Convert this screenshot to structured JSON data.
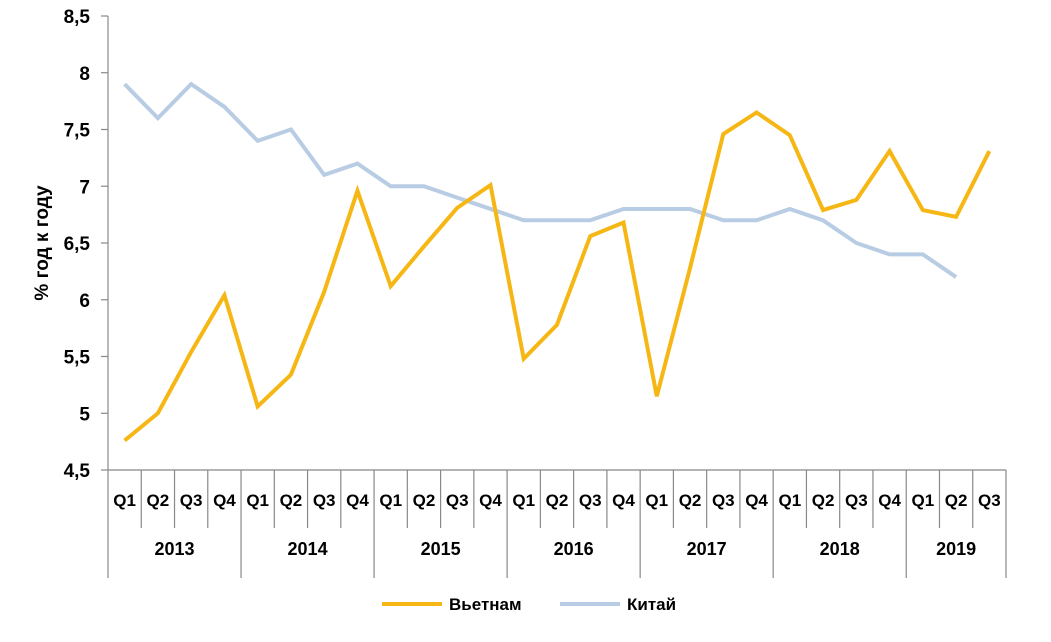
{
  "chart_data": {
    "type": "line",
    "ylabel": "% год к году",
    "xlabel": "",
    "ylim": [
      4.5,
      8.5
    ],
    "yticks": [
      "4,5",
      "5",
      "5,5",
      "6",
      "6,5",
      "7",
      "7,5",
      "8",
      "8,5"
    ],
    "ytick_values": [
      4.5,
      5,
      5.5,
      6,
      6.5,
      7,
      7.5,
      8,
      8.5
    ],
    "grid": false,
    "legend": "bottom",
    "categories": [
      "Q1",
      "Q2",
      "Q3",
      "Q4",
      "Q1",
      "Q2",
      "Q3",
      "Q4",
      "Q1",
      "Q2",
      "Q3",
      "Q4",
      "Q1",
      "Q2",
      "Q3",
      "Q4",
      "Q1",
      "Q2",
      "Q3",
      "Q4",
      "Q1",
      "Q2",
      "Q3",
      "Q4",
      "Q1",
      "Q2",
      "Q3"
    ],
    "groups": [
      {
        "label": "2013",
        "count": 4
      },
      {
        "label": "2014",
        "count": 4
      },
      {
        "label": "2015",
        "count": 4
      },
      {
        "label": "2016",
        "count": 4
      },
      {
        "label": "2017",
        "count": 4
      },
      {
        "label": "2018",
        "count": 4
      },
      {
        "label": "2019",
        "count": 3
      }
    ],
    "series": [
      {
        "name": "Вьетнам",
        "color": "#F6B715",
        "values": [
          4.76,
          5.0,
          5.54,
          6.04,
          5.06,
          5.34,
          6.07,
          6.96,
          6.12,
          6.47,
          6.81,
          7.01,
          5.48,
          5.78,
          6.56,
          6.68,
          5.15,
          6.28,
          7.46,
          7.65,
          7.45,
          6.79,
          6.88,
          7.31,
          6.79,
          6.73,
          7.31
        ]
      },
      {
        "name": "Китай",
        "color": "#B8CCE4",
        "values": [
          7.9,
          7.6,
          7.9,
          7.7,
          7.4,
          7.5,
          7.1,
          7.2,
          7.0,
          7.0,
          6.9,
          6.8,
          6.7,
          6.7,
          6.7,
          6.8,
          6.8,
          6.8,
          6.7,
          6.7,
          6.8,
          6.7,
          6.5,
          6.4,
          6.4,
          6.2,
          null
        ]
      }
    ]
  }
}
